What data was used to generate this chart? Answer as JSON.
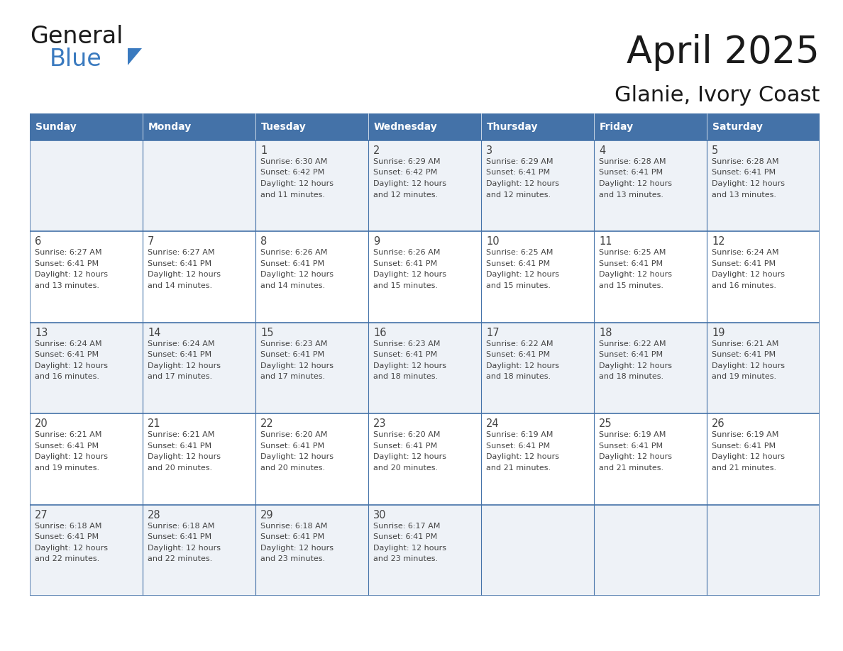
{
  "title": "April 2025",
  "subtitle": "Glanie, Ivory Coast",
  "header_bg": "#4472a8",
  "header_text_color": "#ffffff",
  "cell_bg_odd": "#eef2f7",
  "cell_bg_even": "#ffffff",
  "border_color": "#4472a8",
  "text_color": "#444444",
  "days_of_week": [
    "Sunday",
    "Monday",
    "Tuesday",
    "Wednesday",
    "Thursday",
    "Friday",
    "Saturday"
  ],
  "calendar": [
    [
      {
        "day": "",
        "sunrise": "",
        "sunset": "",
        "daylight": ""
      },
      {
        "day": "",
        "sunrise": "",
        "sunset": "",
        "daylight": ""
      },
      {
        "day": "1",
        "sunrise": "6:30 AM",
        "sunset": "6:42 PM",
        "daylight": "12 hours and 11 minutes."
      },
      {
        "day": "2",
        "sunrise": "6:29 AM",
        "sunset": "6:42 PM",
        "daylight": "12 hours and 12 minutes."
      },
      {
        "day": "3",
        "sunrise": "6:29 AM",
        "sunset": "6:41 PM",
        "daylight": "12 hours and 12 minutes."
      },
      {
        "day": "4",
        "sunrise": "6:28 AM",
        "sunset": "6:41 PM",
        "daylight": "12 hours and 13 minutes."
      },
      {
        "day": "5",
        "sunrise": "6:28 AM",
        "sunset": "6:41 PM",
        "daylight": "12 hours and 13 minutes."
      }
    ],
    [
      {
        "day": "6",
        "sunrise": "6:27 AM",
        "sunset": "6:41 PM",
        "daylight": "12 hours and 13 minutes."
      },
      {
        "day": "7",
        "sunrise": "6:27 AM",
        "sunset": "6:41 PM",
        "daylight": "12 hours and 14 minutes."
      },
      {
        "day": "8",
        "sunrise": "6:26 AM",
        "sunset": "6:41 PM",
        "daylight": "12 hours and 14 minutes."
      },
      {
        "day": "9",
        "sunrise": "6:26 AM",
        "sunset": "6:41 PM",
        "daylight": "12 hours and 15 minutes."
      },
      {
        "day": "10",
        "sunrise": "6:25 AM",
        "sunset": "6:41 PM",
        "daylight": "12 hours and 15 minutes."
      },
      {
        "day": "11",
        "sunrise": "6:25 AM",
        "sunset": "6:41 PM",
        "daylight": "12 hours and 15 minutes."
      },
      {
        "day": "12",
        "sunrise": "6:24 AM",
        "sunset": "6:41 PM",
        "daylight": "12 hours and 16 minutes."
      }
    ],
    [
      {
        "day": "13",
        "sunrise": "6:24 AM",
        "sunset": "6:41 PM",
        "daylight": "12 hours and 16 minutes."
      },
      {
        "day": "14",
        "sunrise": "6:24 AM",
        "sunset": "6:41 PM",
        "daylight": "12 hours and 17 minutes."
      },
      {
        "day": "15",
        "sunrise": "6:23 AM",
        "sunset": "6:41 PM",
        "daylight": "12 hours and 17 minutes."
      },
      {
        "day": "16",
        "sunrise": "6:23 AM",
        "sunset": "6:41 PM",
        "daylight": "12 hours and 18 minutes."
      },
      {
        "day": "17",
        "sunrise": "6:22 AM",
        "sunset": "6:41 PM",
        "daylight": "12 hours and 18 minutes."
      },
      {
        "day": "18",
        "sunrise": "6:22 AM",
        "sunset": "6:41 PM",
        "daylight": "12 hours and 18 minutes."
      },
      {
        "day": "19",
        "sunrise": "6:21 AM",
        "sunset": "6:41 PM",
        "daylight": "12 hours and 19 minutes."
      }
    ],
    [
      {
        "day": "20",
        "sunrise": "6:21 AM",
        "sunset": "6:41 PM",
        "daylight": "12 hours and 19 minutes."
      },
      {
        "day": "21",
        "sunrise": "6:21 AM",
        "sunset": "6:41 PM",
        "daylight": "12 hours and 20 minutes."
      },
      {
        "day": "22",
        "sunrise": "6:20 AM",
        "sunset": "6:41 PM",
        "daylight": "12 hours and 20 minutes."
      },
      {
        "day": "23",
        "sunrise": "6:20 AM",
        "sunset": "6:41 PM",
        "daylight": "12 hours and 20 minutes."
      },
      {
        "day": "24",
        "sunrise": "6:19 AM",
        "sunset": "6:41 PM",
        "daylight": "12 hours and 21 minutes."
      },
      {
        "day": "25",
        "sunrise": "6:19 AM",
        "sunset": "6:41 PM",
        "daylight": "12 hours and 21 minutes."
      },
      {
        "day": "26",
        "sunrise": "6:19 AM",
        "sunset": "6:41 PM",
        "daylight": "12 hours and 21 minutes."
      }
    ],
    [
      {
        "day": "27",
        "sunrise": "6:18 AM",
        "sunset": "6:41 PM",
        "daylight": "12 hours and 22 minutes."
      },
      {
        "day": "28",
        "sunrise": "6:18 AM",
        "sunset": "6:41 PM",
        "daylight": "12 hours and 22 minutes."
      },
      {
        "day": "29",
        "sunrise": "6:18 AM",
        "sunset": "6:41 PM",
        "daylight": "12 hours and 23 minutes."
      },
      {
        "day": "30",
        "sunrise": "6:17 AM",
        "sunset": "6:41 PM",
        "daylight": "12 hours and 23 minutes."
      },
      {
        "day": "",
        "sunrise": "",
        "sunset": "",
        "daylight": ""
      },
      {
        "day": "",
        "sunrise": "",
        "sunset": "",
        "daylight": ""
      },
      {
        "day": "",
        "sunrise": "",
        "sunset": "",
        "daylight": ""
      }
    ]
  ],
  "logo_text1": "General",
  "logo_text2": "Blue",
  "logo_color1": "#1a1a1a",
  "logo_color2": "#3a7abf",
  "fig_width": 11.88,
  "fig_height": 9.18,
  "dpi": 100
}
